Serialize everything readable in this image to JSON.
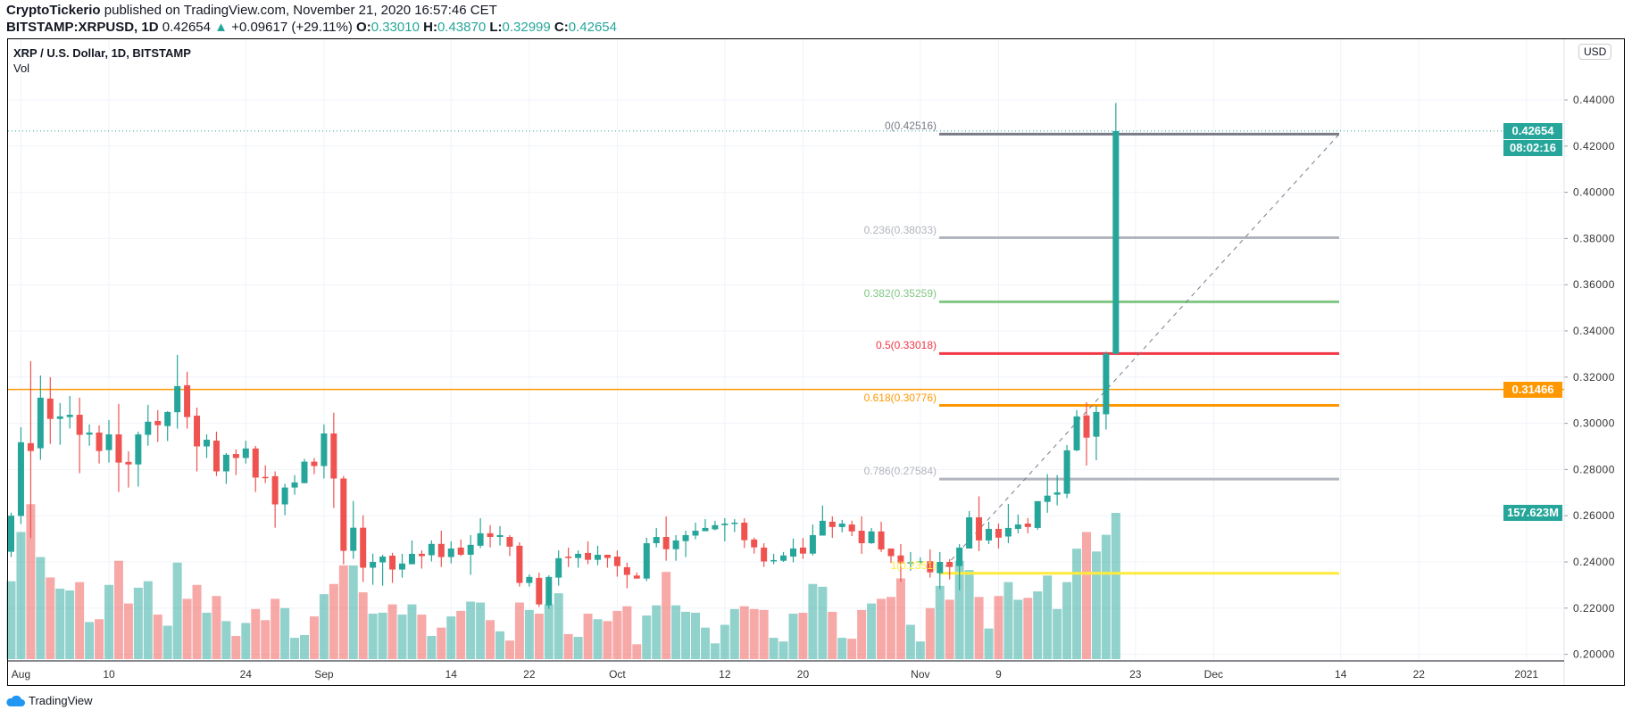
{
  "header": {
    "author": "CryptoTickerio",
    "published": "published on TradingView.com, November 21, 2020 16:57:46 CET",
    "symbol": "BITSTAMP:XRPUSD, 1D",
    "last": "0.42654",
    "change": "+0.09617 (+29.11%)",
    "o_label": "O:",
    "o": "0.33010",
    "h_label": "H:",
    "h": "0.43870",
    "l_label": "L:",
    "l": "0.32999",
    "c_label": "C:",
    "c": "0.42654"
  },
  "legend": {
    "title": "XRP / U.S. Dollar, 1D, BITSTAMP",
    "vol": "Vol"
  },
  "price_axis": {
    "currency_button": "USD",
    "last_price_badge": "0.42654",
    "countdown_badge": "08:02:16",
    "hline_badge": "0.31466",
    "volume_badge": "157.623M"
  },
  "footer": {
    "logo_text": "TradingView"
  },
  "colors": {
    "up": "#26a69a",
    "down": "#ef5350",
    "hline": "#ff9800"
  },
  "fib_levels": [
    {
      "label": "0(0.42516)",
      "price": 0.42516,
      "color": "#787b86"
    },
    {
      "label": "0.236(0.38033)",
      "price": 0.38033,
      "color": "#b2b5be"
    },
    {
      "label": "0.382(0.35259)",
      "price": 0.35259,
      "color": "#81c784"
    },
    {
      "label": "0.5(0.33018)",
      "price": 0.33018,
      "color": "#f23645"
    },
    {
      "label": "0.618(0.30776)",
      "price": 0.30776,
      "color": "#ff9800"
    },
    {
      "label": "0.786(0.27584)",
      "price": 0.27584,
      "color": "#b2b5be"
    },
    {
      "label": "1(0.2351)",
      "price": 0.2351,
      "color": "#ffeb3b"
    }
  ],
  "chart_data": {
    "type": "candlestick",
    "title": "XRP / U.S. Dollar, 1D, BITSTAMP",
    "ylim": [
      0.19,
      0.46
    ],
    "horizontal_line": 0.31466,
    "last_price": 0.42654,
    "price_ticks": [
      "0.20000",
      "0.22000",
      "0.24000",
      "0.26000",
      "0.28000",
      "0.30000",
      "0.32000",
      "0.34000",
      "0.36000",
      "0.38000",
      "0.40000",
      "0.42000",
      "0.44000"
    ],
    "time_ticks": [
      {
        "label": "Aug",
        "day": 1
      },
      {
        "label": "10",
        "day": 10
      },
      {
        "label": "24",
        "day": 24
      },
      {
        "label": "Sep",
        "day": 32
      },
      {
        "label": "14",
        "day": 45
      },
      {
        "label": "22",
        "day": 53
      },
      {
        "label": "Oct",
        "day": 62
      },
      {
        "label": "12",
        "day": 73
      },
      {
        "label": "20",
        "day": 81
      },
      {
        "label": "Nov",
        "day": 93
      },
      {
        "label": "9",
        "day": 101
      },
      {
        "label": "23",
        "day": 115
      },
      {
        "label": "Dec",
        "day": 123
      },
      {
        "label": "14",
        "day": 136
      },
      {
        "label": "22",
        "day": 144
      },
      {
        "label": "2021",
        "day": 155
      }
    ],
    "volume_unit": "M",
    "candles_ohlcv": [
      [
        0.2444,
        0.2613,
        0.2421,
        0.26,
        84
      ],
      [
        0.2599,
        0.2983,
        0.2564,
        0.2918,
        137
      ],
      [
        0.2914,
        0.3269,
        0.2503,
        0.288,
        167
      ],
      [
        0.2892,
        0.3207,
        0.2842,
        0.3111,
        110
      ],
      [
        0.3107,
        0.32,
        0.2911,
        0.3019,
        88
      ],
      [
        0.3019,
        0.3088,
        0.2907,
        0.303,
        76
      ],
      [
        0.3027,
        0.3118,
        0.2977,
        0.3037,
        74
      ],
      [
        0.3037,
        0.3111,
        0.2784,
        0.295,
        83
      ],
      [
        0.2951,
        0.2995,
        0.2903,
        0.296,
        40
      ],
      [
        0.296,
        0.2991,
        0.2826,
        0.288,
        43
      ],
      [
        0.2884,
        0.3014,
        0.283,
        0.2952,
        80
      ],
      [
        0.2952,
        0.3084,
        0.2703,
        0.283,
        106
      ],
      [
        0.2833,
        0.2879,
        0.2722,
        0.2822,
        60
      ],
      [
        0.2822,
        0.2964,
        0.2726,
        0.2952,
        77
      ],
      [
        0.295,
        0.308,
        0.2903,
        0.3007,
        84
      ],
      [
        0.301,
        0.3057,
        0.2919,
        0.2992,
        48
      ],
      [
        0.2988,
        0.3053,
        0.2923,
        0.3049,
        36
      ],
      [
        0.3048,
        0.3296,
        0.2977,
        0.3161,
        104
      ],
      [
        0.3165,
        0.3223,
        0.2977,
        0.3027,
        65
      ],
      [
        0.3033,
        0.3068,
        0.2792,
        0.29,
        80
      ],
      [
        0.29,
        0.2952,
        0.285,
        0.2929,
        50
      ],
      [
        0.2925,
        0.2964,
        0.2772,
        0.2792,
        68
      ],
      [
        0.2792,
        0.2871,
        0.2738,
        0.2864,
        41
      ],
      [
        0.2867,
        0.2887,
        0.2776,
        0.285,
        25
      ],
      [
        0.285,
        0.2925,
        0.2826,
        0.2891,
        39
      ],
      [
        0.2891,
        0.2902,
        0.2703,
        0.2765,
        54
      ],
      [
        0.2768,
        0.2818,
        0.2741,
        0.2765,
        42
      ],
      [
        0.2771,
        0.2792,
        0.2548,
        0.2649,
        65
      ],
      [
        0.2649,
        0.2738,
        0.2602,
        0.2722,
        55
      ],
      [
        0.2722,
        0.2776,
        0.2691,
        0.2744,
        23
      ],
      [
        0.2741,
        0.2846,
        0.2741,
        0.2834,
        26
      ],
      [
        0.2834,
        0.285,
        0.278,
        0.2815,
        46
      ],
      [
        0.2815,
        0.2995,
        0.2761,
        0.2956,
        70
      ],
      [
        0.2956,
        0.3046,
        0.2633,
        0.2761,
        81
      ],
      [
        0.2761,
        0.2772,
        0.239,
        0.2448,
        101
      ],
      [
        0.2448,
        0.2664,
        0.2413,
        0.2548,
        101
      ],
      [
        0.2548,
        0.2602,
        0.2313,
        0.2375,
        72
      ],
      [
        0.2375,
        0.2436,
        0.2301,
        0.24,
        49
      ],
      [
        0.2398,
        0.2431,
        0.2297,
        0.2423,
        50
      ],
      [
        0.2427,
        0.2439,
        0.2309,
        0.2367,
        59
      ],
      [
        0.2367,
        0.2435,
        0.2332,
        0.2393,
        48
      ],
      [
        0.239,
        0.2493,
        0.239,
        0.2435,
        59
      ],
      [
        0.2435,
        0.245,
        0.2371,
        0.2425,
        48
      ],
      [
        0.2429,
        0.2493,
        0.2402,
        0.2478,
        25
      ],
      [
        0.2478,
        0.2535,
        0.2378,
        0.2421,
        34
      ],
      [
        0.2421,
        0.2489,
        0.2394,
        0.2458,
        46
      ],
      [
        0.2462,
        0.2497,
        0.2425,
        0.2431,
        52
      ],
      [
        0.2431,
        0.2516,
        0.2344,
        0.2474,
        62
      ],
      [
        0.247,
        0.2589,
        0.246,
        0.2524,
        61
      ],
      [
        0.2524,
        0.2559,
        0.2463,
        0.2508,
        42
      ],
      [
        0.2508,
        0.2555,
        0.2471,
        0.2516,
        30
      ],
      [
        0.2508,
        0.2516,
        0.2425,
        0.2466,
        20
      ],
      [
        0.247,
        0.2485,
        0.2293,
        0.2309,
        61
      ],
      [
        0.2309,
        0.2346,
        0.2293,
        0.2335,
        53
      ],
      [
        0.2331,
        0.2354,
        0.2205,
        0.2216,
        49
      ],
      [
        0.2212,
        0.2342,
        0.2197,
        0.2335,
        59
      ],
      [
        0.2332,
        0.245,
        0.2297,
        0.2416,
        71
      ],
      [
        0.2423,
        0.2462,
        0.2378,
        0.2417,
        27
      ],
      [
        0.2417,
        0.245,
        0.2375,
        0.2435,
        24
      ],
      [
        0.2439,
        0.2489,
        0.239,
        0.2409,
        49
      ],
      [
        0.2409,
        0.247,
        0.2386,
        0.2431,
        43
      ],
      [
        0.2431,
        0.2431,
        0.2375,
        0.2417,
        41
      ],
      [
        0.2423,
        0.245,
        0.2336,
        0.2382,
        52
      ],
      [
        0.2377,
        0.2397,
        0.2286,
        0.2344,
        57
      ],
      [
        0.2341,
        0.2354,
        0.2328,
        0.2328,
        16
      ],
      [
        0.2328,
        0.2505,
        0.2317,
        0.2481,
        47
      ],
      [
        0.2481,
        0.2547,
        0.2463,
        0.2508,
        58
      ],
      [
        0.2508,
        0.2597,
        0.2405,
        0.2455,
        94
      ],
      [
        0.2455,
        0.2516,
        0.2405,
        0.2493,
        58
      ],
      [
        0.249,
        0.2535,
        0.2421,
        0.2516,
        51
      ],
      [
        0.2514,
        0.257,
        0.2498,
        0.2535,
        50
      ],
      [
        0.2533,
        0.2585,
        0.2533,
        0.2547,
        34
      ],
      [
        0.2541,
        0.2578,
        0.2537,
        0.2559,
        17
      ],
      [
        0.2559,
        0.2589,
        0.2489,
        0.2566,
        37
      ],
      [
        0.2564,
        0.2585,
        0.2529,
        0.257,
        54
      ],
      [
        0.257,
        0.2589,
        0.246,
        0.2494,
        57
      ],
      [
        0.2497,
        0.2505,
        0.2436,
        0.2463,
        54
      ],
      [
        0.2462,
        0.2481,
        0.2378,
        0.2402,
        53
      ],
      [
        0.2405,
        0.2435,
        0.239,
        0.2408,
        23
      ],
      [
        0.2405,
        0.2443,
        0.24,
        0.2428,
        19
      ],
      [
        0.2423,
        0.2501,
        0.2398,
        0.2458,
        49
      ],
      [
        0.2462,
        0.2504,
        0.2413,
        0.2436,
        50
      ],
      [
        0.2436,
        0.2562,
        0.2428,
        0.2516,
        81
      ],
      [
        0.2514,
        0.2644,
        0.2514,
        0.2578,
        78
      ],
      [
        0.2574,
        0.2597,
        0.2504,
        0.2551,
        51
      ],
      [
        0.2551,
        0.2582,
        0.2528,
        0.2566,
        23
      ],
      [
        0.2562,
        0.2578,
        0.2512,
        0.2532,
        22
      ],
      [
        0.2535,
        0.2597,
        0.2435,
        0.2481,
        53
      ],
      [
        0.2481,
        0.2547,
        0.2478,
        0.2532,
        60
      ],
      [
        0.2532,
        0.2574,
        0.2443,
        0.2454,
        65
      ],
      [
        0.2458,
        0.2458,
        0.2396,
        0.2425,
        67
      ],
      [
        0.2428,
        0.2477,
        0.2313,
        0.2394,
        87
      ],
      [
        0.2394,
        0.2443,
        0.2362,
        0.2399,
        37
      ],
      [
        0.2399,
        0.242,
        0.239,
        0.2403,
        19
      ],
      [
        0.2403,
        0.2454,
        0.2332,
        0.2355,
        55
      ],
      [
        0.2351,
        0.2443,
        0.2282,
        0.24,
        79
      ],
      [
        0.24,
        0.2412,
        0.2324,
        0.2378,
        64
      ],
      [
        0.2382,
        0.2477,
        0.2278,
        0.2462,
        106
      ],
      [
        0.2458,
        0.262,
        0.2458,
        0.2593,
        96
      ],
      [
        0.2593,
        0.2684,
        0.2447,
        0.2493,
        67
      ],
      [
        0.2493,
        0.2574,
        0.2477,
        0.2543,
        33
      ],
      [
        0.2543,
        0.2566,
        0.2458,
        0.2505,
        68
      ],
      [
        0.251,
        0.2651,
        0.2481,
        0.2547,
        83
      ],
      [
        0.2543,
        0.2605,
        0.2524,
        0.2562,
        64
      ],
      [
        0.2566,
        0.259,
        0.2524,
        0.2551,
        66
      ],
      [
        0.2547,
        0.2663,
        0.2539,
        0.2663,
        73
      ],
      [
        0.266,
        0.278,
        0.2613,
        0.2687,
        90
      ],
      [
        0.2691,
        0.2776,
        0.2645,
        0.2701,
        54
      ],
      [
        0.2695,
        0.2906,
        0.2676,
        0.2883,
        83
      ],
      [
        0.2883,
        0.3057,
        0.2879,
        0.303,
        119
      ],
      [
        0.3034,
        0.3091,
        0.2817,
        0.2938,
        137
      ],
      [
        0.2942,
        0.3076,
        0.284,
        0.3049,
        116
      ],
      [
        0.3039,
        0.331,
        0.2973,
        0.3301,
        134
      ],
      [
        0.3301,
        0.4387,
        0.33,
        0.4265,
        157.623
      ]
    ]
  }
}
